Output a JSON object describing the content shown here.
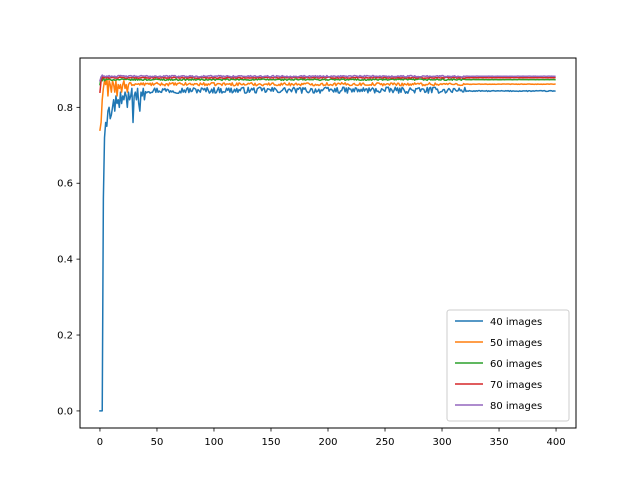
{
  "chart_data": {
    "type": "line",
    "title": "",
    "xlabel": "",
    "ylabel": "",
    "xlim": [
      -17.5,
      417.5
    ],
    "ylim": [
      -0.045,
      0.93
    ],
    "grid": false,
    "legend_position": "lower-right",
    "x_ticks": [
      0,
      50,
      100,
      150,
      200,
      250,
      300,
      350,
      400
    ],
    "x_tick_labels": [
      "0",
      "50",
      "100",
      "150",
      "200",
      "250",
      "300",
      "350",
      "400"
    ],
    "y_ticks": [
      0.0,
      0.2,
      0.4,
      0.6,
      0.8
    ],
    "y_tick_labels": [
      "0.0",
      "0.2",
      "0.4",
      "0.6",
      "0.8"
    ],
    "x": {
      "start": 0,
      "end": 399,
      "step": 1
    },
    "series": [
      {
        "name": "40 images",
        "color": "#1f77b4",
        "values": [
          0.0,
          0.0,
          0.0,
          0.56,
          0.72,
          0.76,
          0.75,
          0.79,
          0.8,
          0.77,
          0.78,
          0.8,
          0.82,
          0.79,
          0.83,
          0.81,
          0.82,
          0.8,
          0.84,
          0.81,
          0.83,
          0.82,
          0.84,
          0.83,
          0.8,
          0.84,
          0.82,
          0.83,
          0.85,
          0.76,
          0.83,
          0.84,
          0.82,
          0.85,
          0.81,
          0.79,
          0.84,
          0.83,
          0.85,
          0.82
        ],
        "tail": {
          "value": 0.845,
          "jitter": 0.008,
          "settle_value": 0.843
        }
      },
      {
        "name": "50 images",
        "color": "#ff7f0e",
        "values": [
          0.74,
          0.76,
          0.82,
          0.85,
          0.87,
          0.86,
          0.88,
          0.83,
          0.87,
          0.86,
          0.84,
          0.87,
          0.86,
          0.84,
          0.87,
          0.83,
          0.86,
          0.85,
          0.86,
          0.84,
          0.86,
          0.87,
          0.85,
          0.86,
          0.84
        ],
        "tail": {
          "value": 0.861,
          "jitter": 0.004,
          "settle_value": 0.861
        }
      },
      {
        "name": "60 images",
        "color": "#2ca02c",
        "values": [
          0.86,
          0.88,
          0.87,
          0.88,
          0.87
        ],
        "tail": {
          "value": 0.873,
          "jitter": 0.002,
          "settle_value": 0.873
        }
      },
      {
        "name": "70 images",
        "color": "#d62728",
        "values": [
          0.84,
          0.87,
          0.88
        ],
        "tail": {
          "value": 0.878,
          "jitter": 0.0015,
          "settle_value": 0.878
        }
      },
      {
        "name": "80 images",
        "color": "#9467bd",
        "values": [
          0.87,
          0.88,
          0.885
        ],
        "tail": {
          "value": 0.882,
          "jitter": 0.002,
          "settle_value": 0.882
        }
      }
    ]
  }
}
